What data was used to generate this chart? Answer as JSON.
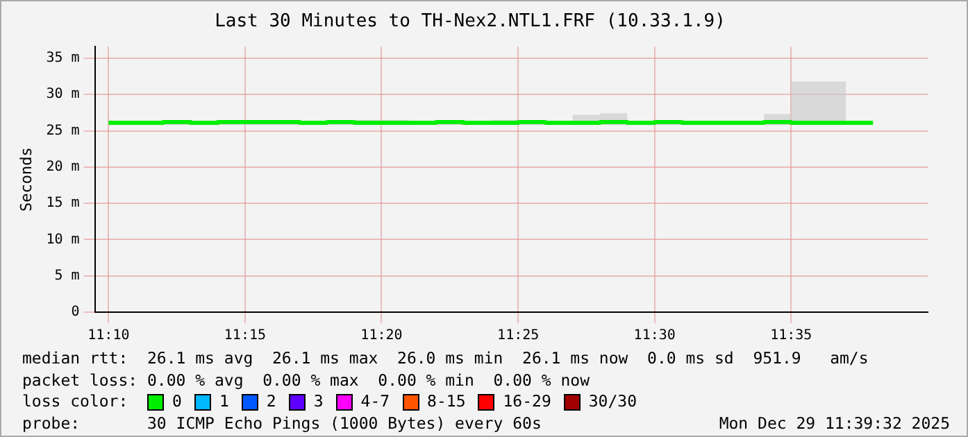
{
  "chart_data": {
    "type": "step",
    "title": "Last 30 Minutes to TH-Nex2.NTL1.FRF (10.33.1.9)",
    "ylabel": "Seconds",
    "legend_title": "loss color:",
    "legend": "bottom",
    "grid": true,
    "marker": "none",
    "line_style": "solid",
    "x": [
      11.1667,
      11.1833,
      11.2,
      11.2167,
      11.2333,
      11.25,
      11.2667,
      11.2833,
      11.3,
      11.3167,
      11.3333,
      11.35,
      11.3667,
      11.3833,
      11.4,
      11.4167,
      11.4333,
      11.45,
      11.4667,
      11.4833,
      11.5,
      11.5167,
      11.5333,
      11.55,
      11.5667,
      11.5833,
      11.6,
      11.6167,
      11.6333
    ],
    "xlim": [
      11.1583,
      11.6667
    ],
    "xticks": [
      {
        "value": 11.1667,
        "label": "11:10"
      },
      {
        "value": 11.25,
        "label": "11:15"
      },
      {
        "value": 11.3333,
        "label": "11:20"
      },
      {
        "value": 11.4167,
        "label": "11:25"
      },
      {
        "value": 11.5,
        "label": "11:30"
      },
      {
        "value": 11.5833,
        "label": "11:35"
      }
    ],
    "ylim": [
      0,
      36.6
    ],
    "yticks": [
      0,
      {
        "value": 5,
        "label": "5 m"
      },
      {
        "value": 10,
        "label": "10 m"
      },
      {
        "value": 15,
        "label": "15 m"
      },
      {
        "value": 20,
        "label": "20 m"
      },
      {
        "value": 25,
        "label": "25 m"
      },
      {
        "value": 30,
        "label": "30 m"
      },
      {
        "value": 35,
        "label": "35 m"
      }
    ],
    "series": [
      {
        "name": "0",
        "color": "#00ee00",
        "values": [
          26.1,
          26.1,
          26.2,
          26.1,
          26.2,
          26.2,
          26.2,
          26.1,
          26.2,
          26.1,
          26.1,
          26.1,
          26.2,
          26.1,
          26.1,
          26.2,
          26.1,
          26.1,
          26.2,
          26.1,
          26.2,
          26.1,
          26.1,
          26.1,
          26.2,
          26.1,
          26.1,
          26.1,
          26.1
        ],
        "lower": [
          25.8,
          25.8,
          25.8,
          25.8,
          25.8,
          25.8,
          25.8,
          25.8,
          25.8,
          25.8,
          25.8,
          25.8,
          25.8,
          25.8,
          25.8,
          25.8,
          25.8,
          25.8,
          25.8,
          25.8,
          25.8,
          25.8,
          25.8,
          25.8,
          25.8,
          25.8,
          25.8,
          25.8,
          25.8
        ],
        "upper": [
          26.2,
          26.2,
          26.3,
          26.2,
          26.3,
          26.3,
          26.3,
          26.2,
          26.4,
          26.5,
          26.5,
          26.4,
          26.3,
          26.2,
          26.5,
          26.3,
          26.3,
          27.2,
          27.4,
          26.3,
          26.3,
          26.3,
          26.4,
          26.2,
          27.3,
          31.8,
          31.8,
          26.3,
          26.2
        ]
      },
      {
        "name": "1",
        "color": "#00b8ff",
        "values": [
          null,
          null,
          null,
          null,
          null,
          null,
          null,
          null,
          null,
          null,
          null,
          null,
          null,
          null,
          null,
          null,
          null,
          null,
          null,
          null,
          null,
          null,
          null,
          null,
          null,
          null,
          null,
          null,
          null
        ]
      },
      {
        "name": "2",
        "color": "#0059ff",
        "values": [
          null,
          null,
          null,
          null,
          null,
          null,
          null,
          null,
          null,
          null,
          null,
          null,
          null,
          null,
          null,
          null,
          null,
          null,
          null,
          null,
          null,
          null,
          null,
          null,
          null,
          null,
          null,
          null,
          null
        ]
      },
      {
        "name": "3",
        "color": "#5e00ff",
        "values": [
          null,
          null,
          null,
          null,
          null,
          null,
          null,
          null,
          null,
          null,
          null,
          null,
          null,
          null,
          null,
          null,
          null,
          null,
          null,
          null,
          null,
          null,
          null,
          null,
          null,
          null,
          null,
          null,
          null
        ]
      },
      {
        "name": "4-7",
        "color": "#ff00ff",
        "values": [
          null,
          null,
          null,
          null,
          null,
          null,
          null,
          null,
          null,
          null,
          null,
          null,
          null,
          null,
          null,
          null,
          null,
          null,
          null,
          null,
          null,
          null,
          null,
          null,
          null,
          null,
          null,
          null,
          null
        ]
      },
      {
        "name": "8-15",
        "color": "#ff5500",
        "values": [
          null,
          null,
          null,
          null,
          null,
          null,
          null,
          null,
          null,
          null,
          null,
          null,
          null,
          null,
          null,
          null,
          null,
          null,
          null,
          null,
          null,
          null,
          null,
          null,
          null,
          null,
          null,
          null,
          null
        ]
      },
      {
        "name": "16-29",
        "color": "#ff0000",
        "values": [
          null,
          null,
          null,
          null,
          null,
          null,
          null,
          null,
          null,
          null,
          null,
          null,
          null,
          null,
          null,
          null,
          null,
          null,
          null,
          null,
          null,
          null,
          null,
          null,
          null,
          null,
          null,
          null,
          null
        ]
      },
      {
        "name": "30/30",
        "color": "#a10000",
        "values": [
          null,
          null,
          null,
          null,
          null,
          null,
          null,
          null,
          null,
          null,
          null,
          null,
          null,
          null,
          null,
          null,
          null,
          null,
          null,
          null,
          null,
          null,
          null,
          null,
          null,
          null,
          null,
          null,
          null
        ]
      }
    ],
    "annotations": [
      "median rtt:  26.1 ms avg  26.1 ms max  26.0 ms min  26.1 ms now  0.0 ms sd  951.9   am/s",
      "packet loss: 0.00 % avg  0.00 % max  0.00 % min  0.00 % now",
      "probe:       30 ICMP Echo Pings (1000 Bytes) every 60s",
      "Mon Dec 29 11:39:32 2025"
    ]
  }
}
